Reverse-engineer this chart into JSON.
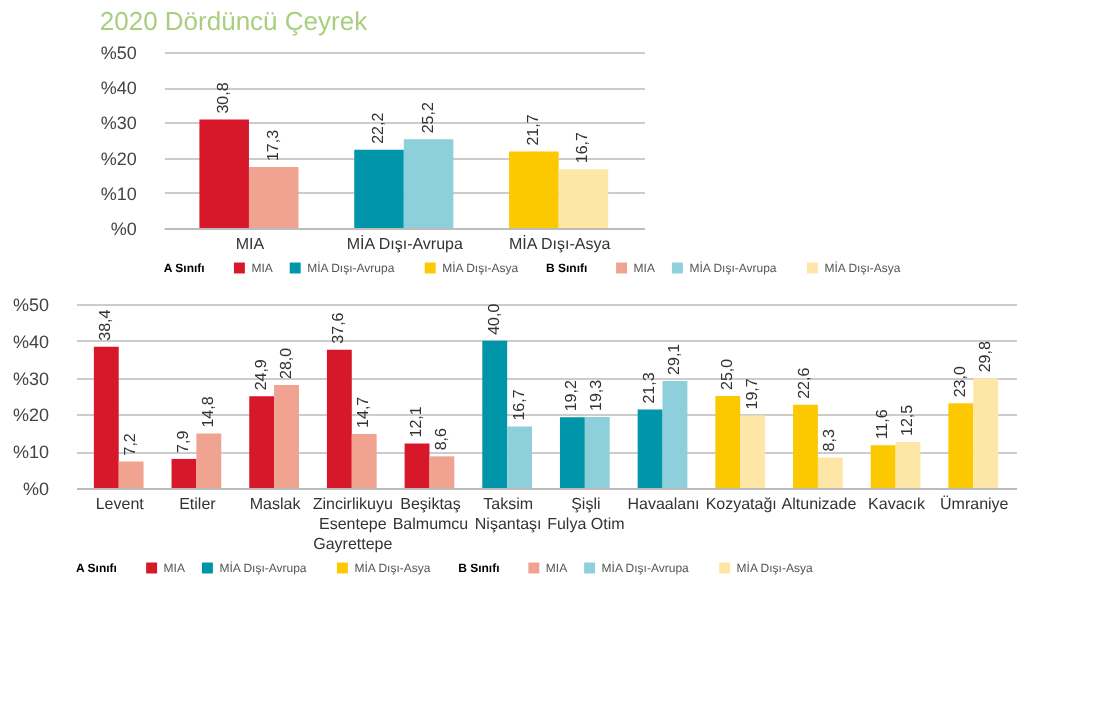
{
  "chart_data": [
    {
      "type": "bar",
      "title": "2020 Dördüncü Çeyrek",
      "categories": [
        "MIA",
        "MİA Dışı-Avrupa",
        "MİA Dışı-Asya"
      ],
      "series": [
        {
          "name": "MIA",
          "color": "#d7182a",
          "values": [
            30.8,
            null,
            null
          ],
          "value_labels": [
            "30,8",
            null,
            null
          ]
        },
        {
          "name": "MİA Dışı-Avrupa",
          "color": "#0095a8",
          "values": [
            null,
            22.2,
            null
          ],
          "value_labels": [
            null,
            "22,2",
            null
          ]
        },
        {
          "name": "MİA Dışı-Asya",
          "color": "#fcc800",
          "values": [
            null,
            null,
            21.7
          ],
          "value_labels": [
            null,
            null,
            "21,7"
          ]
        },
        {
          "name": "MIA",
          "color": "#efa390",
          "values": [
            17.3,
            null,
            null
          ],
          "value_labels": [
            "17,3",
            null,
            null
          ]
        },
        {
          "name": "MİA Dışı-Avrupa",
          "color": "#8ecfdc",
          "values": [
            null,
            25.2,
            null
          ],
          "value_labels": [
            null,
            "25,2",
            null
          ]
        },
        {
          "name": "MİA Dışı-Asya",
          "color": "#fde6a6",
          "values": [
            null,
            null,
            16.7
          ],
          "value_labels": [
            null,
            null,
            "16,7"
          ]
        }
      ],
      "annotations": [
        "A Sınıfı",
        "B Sınıfı"
      ],
      "ylim": [
        0,
        50
      ],
      "yticks": [
        {
          "value": 0,
          "label": "%0"
        },
        {
          "value": 10,
          "label": "%10"
        },
        {
          "value": 20,
          "label": "%20"
        },
        {
          "value": 30,
          "label": "%30"
        },
        {
          "value": 40,
          "label": "%40"
        },
        {
          "value": 50,
          "label": "%50"
        }
      ],
      "grid": "y",
      "legend": "bottom"
    },
    {
      "type": "bar",
      "categories": [
        "Levent",
        "Etiler",
        "Maslak",
        "Zincirlikuyu\nEsentepe\nGayrettepe",
        "Beşiktaş\nBalmumcu",
        "Taksim\nNişantaşı",
        "Şişli\nFulya Otim",
        "Havaalanı",
        "Kozyatağı",
        "Altunizade",
        "Kavacık",
        "Ümraniye"
      ],
      "series": [
        {
          "name": "MIA",
          "color": "#d7182a",
          "values": [
            38.4,
            7.9,
            24.9,
            37.6,
            12.1,
            null,
            null,
            null,
            null,
            null,
            null,
            null
          ],
          "value_labels": [
            "38,4",
            "7,9",
            "24,9",
            "37,6",
            "12,1",
            null,
            null,
            null,
            null,
            null,
            null,
            null
          ]
        },
        {
          "name": "MİA Dışı-Avrupa",
          "color": "#0095a8",
          "values": [
            null,
            null,
            null,
            null,
            null,
            40.0,
            19.2,
            21.3,
            null,
            null,
            null,
            null
          ],
          "value_labels": [
            null,
            null,
            null,
            null,
            null,
            "40,0",
            "19,2",
            "21,3",
            null,
            null,
            null,
            null
          ]
        },
        {
          "name": "MİA Dışı-Asya",
          "color": "#fcc800",
          "values": [
            null,
            null,
            null,
            null,
            null,
            null,
            null,
            null,
            25.0,
            22.6,
            11.6,
            23.0
          ],
          "value_labels": [
            null,
            null,
            null,
            null,
            null,
            null,
            null,
            null,
            "25,0",
            "22,6",
            "11,6",
            "23,0"
          ]
        },
        {
          "name": "MIA",
          "color": "#efa390",
          "values": [
            7.2,
            14.8,
            28.0,
            14.7,
            8.6,
            null,
            null,
            null,
            null,
            null,
            null,
            null
          ],
          "value_labels": [
            "7,2",
            "14,8",
            "28,0",
            "14,7",
            "8,6",
            null,
            null,
            null,
            null,
            null,
            null,
            null
          ]
        },
        {
          "name": "MİA Dışı-Avrupa",
          "color": "#8ecfdc",
          "values": [
            null,
            null,
            null,
            null,
            null,
            16.7,
            19.3,
            29.1,
            null,
            null,
            null,
            null
          ],
          "value_labels": [
            null,
            null,
            null,
            null,
            null,
            "16,7",
            "19,3",
            "29,1",
            null,
            null,
            null,
            null
          ]
        },
        {
          "name": "MİA Dışı-Asya",
          "color": "#fde6a6",
          "values": [
            null,
            null,
            null,
            null,
            null,
            null,
            null,
            null,
            19.7,
            8.3,
            12.5,
            29.8
          ],
          "value_labels": [
            null,
            null,
            null,
            null,
            null,
            null,
            null,
            null,
            "19,7",
            "8,3",
            "12,5",
            "29,8"
          ]
        }
      ],
      "annotations": [
        "A Sınıfı",
        "B Sınıfı"
      ],
      "ylim": [
        0,
        50
      ],
      "yticks": [
        {
          "value": 0,
          "label": "%0"
        },
        {
          "value": 10,
          "label": "%10"
        },
        {
          "value": 20,
          "label": "%20"
        },
        {
          "value": 30,
          "label": "%30"
        },
        {
          "value": 40,
          "label": "%40"
        },
        {
          "value": 50,
          "label": "%50"
        }
      ],
      "grid": "y",
      "legend": "bottom"
    }
  ]
}
